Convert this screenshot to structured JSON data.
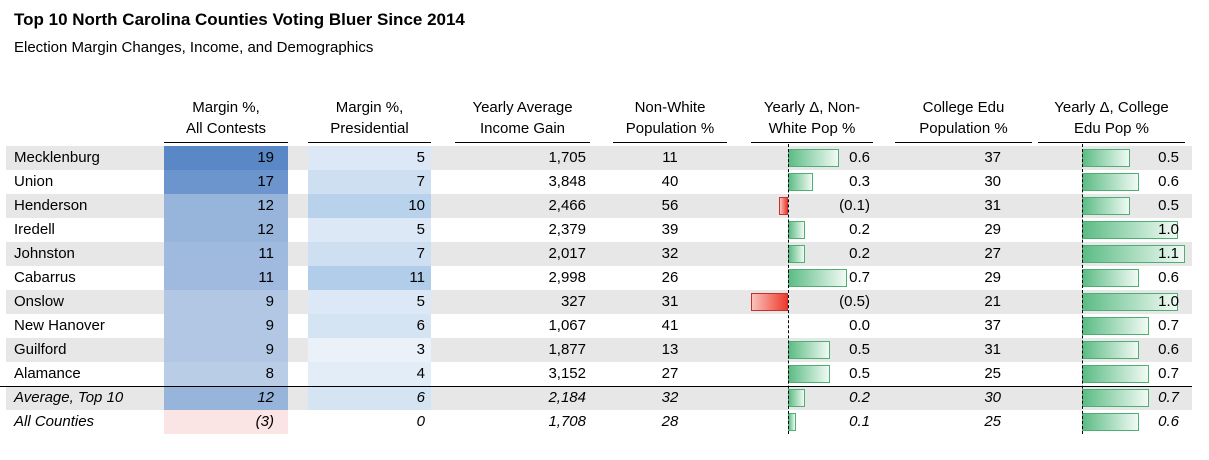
{
  "title": "Top 10 North Carolina Counties Voting Bluer Since 2014",
  "subtitle": "Election Margin Changes, Income, and Demographics",
  "colors": {
    "stripe": "#e7e7e7",
    "scale_blue_dark": "#5a88c6",
    "scale_blue_light": "#b2cde9",
    "scale_negative_red": "#e05252",
    "bar_green_solid": "#5cbc85",
    "bar_green_fade": "#f1faf4",
    "bar_green_border": "#4fae73",
    "bar_red_solid": "#ee3a2c",
    "bar_red_fade": "#f9c2bc",
    "bar_red_border": "#c5302c",
    "rule_line": "#000000"
  },
  "chart_data": {
    "type": "table",
    "legend_position": "none",
    "columns": [
      {
        "key": "county",
        "h1": "",
        "h2": "",
        "type": "text"
      },
      {
        "key": "margin_all",
        "h1": "Margin %,",
        "h2": "All Contests",
        "type": "scale",
        "max": 19,
        "negmax": 19,
        "pos": "#5a88c6",
        "neg": "#e05252"
      },
      {
        "key": "margin_pres",
        "h1": "Margin %,",
        "h2": "Presidential",
        "type": "scale",
        "max": 11,
        "negmax": 11,
        "pos": "#b2cde9",
        "neg": "#e05252"
      },
      {
        "key": "income",
        "h1": "Yearly Average",
        "h2": "Income Gain",
        "type": "num"
      },
      {
        "key": "nonwhite",
        "h1": "Non-White",
        "h2": "Population %",
        "type": "num"
      },
      {
        "key": "d_nonwhite",
        "h1": "Yearly Δ, Non-",
        "h2": "White Pop %",
        "type": "bar",
        "axis": 30,
        "unit": 70
      },
      {
        "key": "college",
        "h1": "College Edu",
        "h2": "Population %",
        "type": "num"
      },
      {
        "key": "d_college",
        "h1": "Yearly Δ, College",
        "h2": "Edu Pop %",
        "type": "bar",
        "axis": 30,
        "unit": 65
      }
    ],
    "rows": [
      {
        "italic": false,
        "c": {
          "county": "Mecklenburg",
          "margin_all": {
            "t": "19",
            "v": 19
          },
          "margin_pres": {
            "t": "5",
            "v": 5
          },
          "income": "1,705",
          "nonwhite": "11",
          "d_nonwhite": {
            "t": "0.6",
            "v": 0.6
          },
          "college": "37",
          "d_college": {
            "t": "0.5",
            "v": 0.5
          }
        }
      },
      {
        "italic": false,
        "c": {
          "county": "Union",
          "margin_all": {
            "t": "17",
            "v": 17
          },
          "margin_pres": {
            "t": "7",
            "v": 7
          },
          "income": "3,848",
          "nonwhite": "40",
          "d_nonwhite": {
            "t": "0.3",
            "v": 0.3
          },
          "college": "30",
          "d_college": {
            "t": "0.6",
            "v": 0.6
          }
        }
      },
      {
        "italic": false,
        "c": {
          "county": "Henderson",
          "margin_all": {
            "t": "12",
            "v": 12
          },
          "margin_pres": {
            "t": "10",
            "v": 10
          },
          "income": "2,466",
          "nonwhite": "56",
          "d_nonwhite": {
            "t": "(0.1)",
            "v": -0.1
          },
          "college": "31",
          "d_college": {
            "t": "0.5",
            "v": 0.5
          }
        }
      },
      {
        "italic": false,
        "c": {
          "county": "Iredell",
          "margin_all": {
            "t": "12",
            "v": 12
          },
          "margin_pres": {
            "t": "5",
            "v": 5
          },
          "income": "2,379",
          "nonwhite": "39",
          "d_nonwhite": {
            "t": "0.2",
            "v": 0.2
          },
          "college": "29",
          "d_college": {
            "t": "1.0",
            "v": 1.0
          }
        }
      },
      {
        "italic": false,
        "c": {
          "county": "Johnston",
          "margin_all": {
            "t": "11",
            "v": 11
          },
          "margin_pres": {
            "t": "7",
            "v": 7
          },
          "income": "2,017",
          "nonwhite": "32",
          "d_nonwhite": {
            "t": "0.2",
            "v": 0.2
          },
          "college": "27",
          "d_college": {
            "t": "1.1",
            "v": 1.1
          }
        }
      },
      {
        "italic": false,
        "c": {
          "county": "Cabarrus",
          "margin_all": {
            "t": "11",
            "v": 11
          },
          "margin_pres": {
            "t": "11",
            "v": 11
          },
          "income": "2,998",
          "nonwhite": "26",
          "d_nonwhite": {
            "t": "0.7",
            "v": 0.7
          },
          "college": "29",
          "d_college": {
            "t": "0.6",
            "v": 0.6
          }
        }
      },
      {
        "italic": false,
        "c": {
          "county": "Onslow",
          "margin_all": {
            "t": "9",
            "v": 9
          },
          "margin_pres": {
            "t": "5",
            "v": 5
          },
          "income": "327",
          "nonwhite": "31",
          "d_nonwhite": {
            "t": "(0.5)",
            "v": -0.5
          },
          "college": "21",
          "d_college": {
            "t": "1.0",
            "v": 1.0
          }
        }
      },
      {
        "italic": false,
        "c": {
          "county": "New Hanover",
          "margin_all": {
            "t": "9",
            "v": 9
          },
          "margin_pres": {
            "t": "6",
            "v": 6
          },
          "income": "1,067",
          "nonwhite": "41",
          "d_nonwhite": {
            "t": "0.0",
            "v": 0
          },
          "college": "37",
          "d_college": {
            "t": "0.7",
            "v": 0.7
          }
        }
      },
      {
        "italic": false,
        "c": {
          "county": "Guilford",
          "margin_all": {
            "t": "9",
            "v": 9
          },
          "margin_pres": {
            "t": "3",
            "v": 3
          },
          "income": "1,877",
          "nonwhite": "13",
          "d_nonwhite": {
            "t": "0.5",
            "v": 0.5
          },
          "college": "31",
          "d_college": {
            "t": "0.6",
            "v": 0.6
          }
        }
      },
      {
        "italic": false,
        "c": {
          "county": "Alamance",
          "margin_all": {
            "t": "8",
            "v": 8
          },
          "margin_pres": {
            "t": "4",
            "v": 4
          },
          "income": "3,152",
          "nonwhite": "27",
          "d_nonwhite": {
            "t": "0.5",
            "v": 0.5
          },
          "college": "25",
          "d_college": {
            "t": "0.7",
            "v": 0.7
          }
        }
      },
      {
        "italic": true,
        "c": {
          "county": "Average, Top 10",
          "margin_all": {
            "t": "12",
            "v": 12
          },
          "margin_pres": {
            "t": "6",
            "v": 6
          },
          "income": "2,184",
          "nonwhite": "32",
          "d_nonwhite": {
            "t": "0.2",
            "v": 0.2
          },
          "college": "30",
          "d_college": {
            "t": "0.7",
            "v": 0.7
          }
        }
      },
      {
        "italic": true,
        "c": {
          "county": "All Counties",
          "margin_all": {
            "t": "(3)",
            "v": -3
          },
          "margin_pres": {
            "t": "0",
            "v": 0
          },
          "income": "1,708",
          "nonwhite": "28",
          "d_nonwhite": {
            "t": "0.1",
            "v": 0.1
          },
          "college": "25",
          "d_college": {
            "t": "0.6",
            "v": 0.6
          }
        }
      }
    ]
  }
}
